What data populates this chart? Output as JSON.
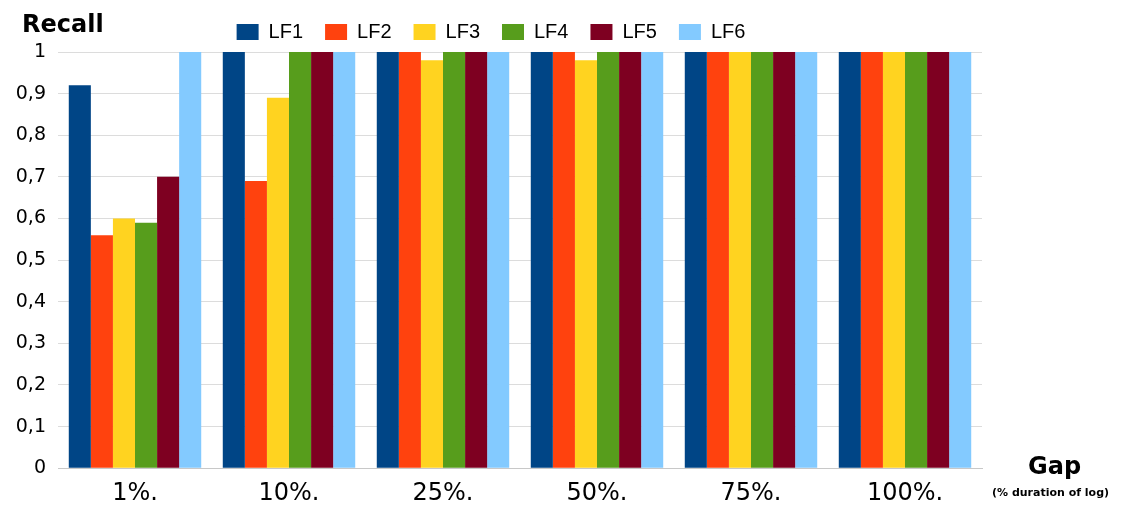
{
  "chart_data": {
    "type": "bar",
    "ylabel": "Recall",
    "xlabel": "Gap",
    "annotations": [
      "(% duration of log)"
    ],
    "categories": [
      "1%.",
      "10%.",
      "25%.",
      "50%.",
      "75%.",
      "100%."
    ],
    "series": [
      {
        "name": "LF1",
        "color": "#004586",
        "values": [
          0.92,
          1,
          1,
          1,
          1,
          1
        ]
      },
      {
        "name": "LF2",
        "color": "#ff420e",
        "values": [
          0.56,
          0.69,
          1,
          1,
          1,
          1
        ]
      },
      {
        "name": "LF3",
        "color": "#ffd320",
        "values": [
          0.6,
          0.89,
          0.98,
          0.98,
          1,
          1
        ]
      },
      {
        "name": "LF4",
        "color": "#579d1c",
        "values": [
          0.59,
          1,
          1,
          1,
          1,
          1
        ]
      },
      {
        "name": "LF5",
        "color": "#7e0021",
        "values": [
          0.7,
          1,
          1,
          1,
          1,
          1
        ]
      },
      {
        "name": "LF6",
        "color": "#83caff",
        "values": [
          1,
          1,
          1,
          1,
          1,
          1
        ]
      }
    ],
    "ylim": [
      0,
      1
    ],
    "yticks": [
      {
        "value": 0,
        "label": "0"
      },
      {
        "value": 0.1,
        "label": "0,1"
      },
      {
        "value": 0.2,
        "label": "0,2"
      },
      {
        "value": 0.3,
        "label": "0,3"
      },
      {
        "value": 0.4,
        "label": "0,4"
      },
      {
        "value": 0.5,
        "label": "0,5"
      },
      {
        "value": 0.6,
        "label": "0,6"
      },
      {
        "value": 0.7,
        "label": "0,7"
      },
      {
        "value": 0.8,
        "label": "0,8"
      },
      {
        "value": 0.9,
        "label": "0,9"
      },
      {
        "value": 1,
        "label": "1"
      }
    ],
    "grid": "y",
    "legend": "top"
  }
}
